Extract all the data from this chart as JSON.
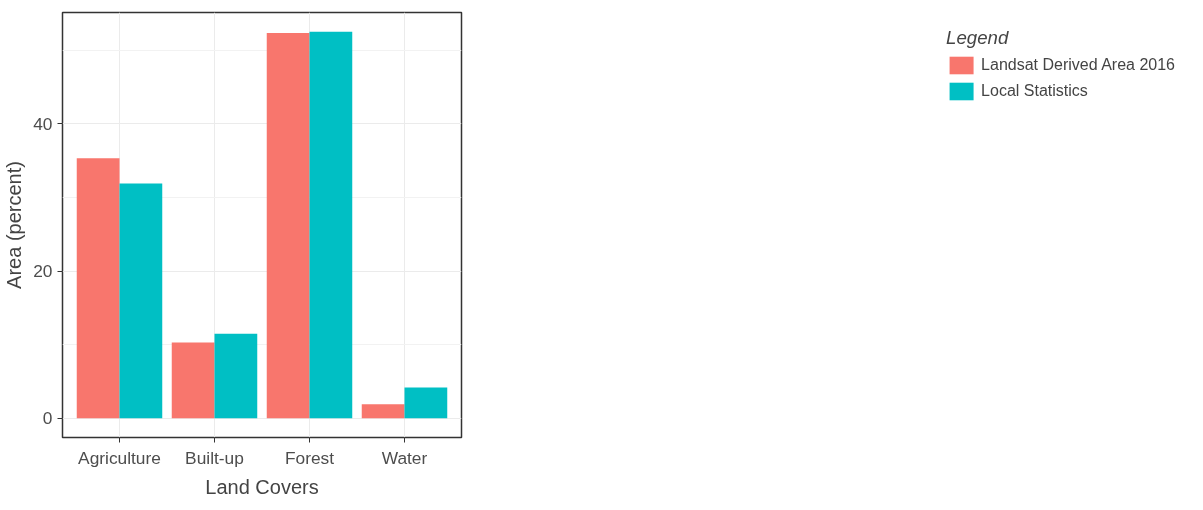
{
  "chart_data": {
    "type": "bar",
    "xlabel": "Land Covers",
    "ylabel": "Area (percent)",
    "legend_title": "Legend",
    "categories": [
      "Agriculture",
      "Built-up",
      "Forest",
      "Water"
    ],
    "series": [
      {
        "name": "Landsat Derived Area 2016",
        "color": "#f8766d",
        "values": [
          35.3,
          10.3,
          52.3,
          1.9
        ]
      },
      {
        "name": "Local Statistics",
        "color": "#00bfc4",
        "values": [
          31.9,
          11.5,
          52.5,
          4.2
        ]
      }
    ],
    "ylim": [
      -2.6,
      55.1
    ],
    "yticks": [
      0,
      20,
      40
    ],
    "grid": true,
    "legend": "right"
  }
}
